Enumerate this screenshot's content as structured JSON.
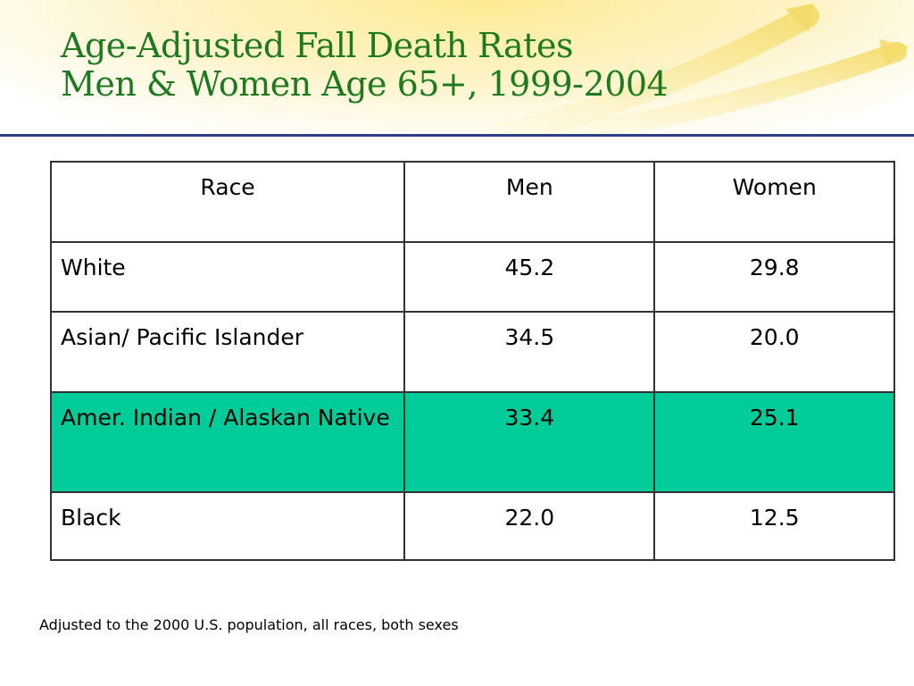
{
  "title": {
    "line1": "Age-Adjusted Fall Death Rates",
    "line2": "Men & Women Age 65+, 1999-2004"
  },
  "table": {
    "headers": [
      "Race",
      "Men",
      "Women"
    ],
    "rows": [
      {
        "race": "White",
        "men": "45.2",
        "women": "29.8",
        "highlighted": false
      },
      {
        "race": "Asian/ Pacific Islander",
        "men": "34.5",
        "women": "20.0",
        "highlighted": false
      },
      {
        "race": "Amer. Indian / Alaskan Native",
        "men": "33.4",
        "women": "25.1",
        "highlighted": true
      },
      {
        "race": "Black",
        "men": "22.0",
        "women": "12.5",
        "highlighted": false
      }
    ]
  },
  "footnote": "Adjusted to the 2000 U.S. population, all races, both sexes",
  "colors": {
    "title": "#1f7a1f",
    "rule": "#2e3f86",
    "highlight_row": "#00cc99",
    "header_glow": "#fde98a"
  }
}
